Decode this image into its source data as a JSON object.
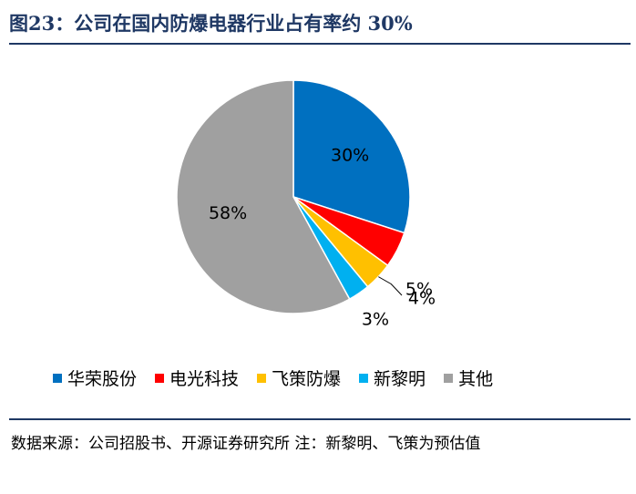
{
  "title": "图23：公司在国内防爆电器行业占有率约 30%",
  "source_note": "数据来源：公司招股书、开源证券研究所 注：新黎明、飞策为预估值",
  "chart_data": {
    "type": "pie",
    "title": "",
    "legend_position": "bottom",
    "slices": [
      {
        "name": "华荣股份",
        "value": 30,
        "label": "30%",
        "color": "#0070c0"
      },
      {
        "name": "电光科技",
        "value": 5,
        "label": "5%",
        "color": "#ff0000"
      },
      {
        "name": "飞策防爆",
        "value": 4,
        "label": "4%",
        "color": "#ffc000"
      },
      {
        "name": "新黎明",
        "value": 3,
        "label": "3%",
        "color": "#00b0f0"
      },
      {
        "name": "其他",
        "value": 58,
        "label": "58%",
        "color": "#a0a0a0"
      }
    ]
  }
}
